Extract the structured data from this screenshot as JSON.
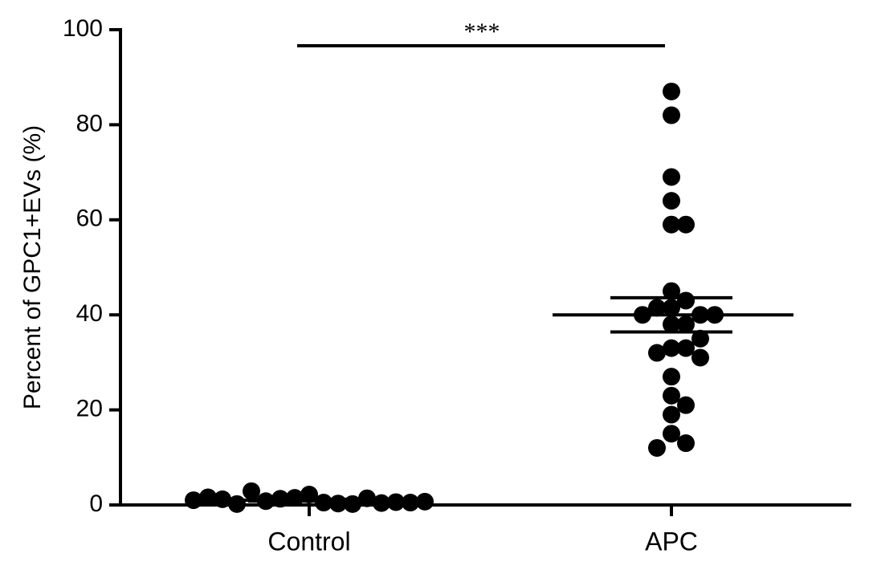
{
  "chart_data": {
    "type": "strip",
    "y_label": "Percent of GPC1+EVs (%)",
    "categories": [
      "Control",
      "APC"
    ],
    "series": [
      {
        "color": "#000000",
        "values": [
          2.2,
          0.5,
          1.5,
          0.3,
          1.3,
          0.2,
          0.8,
          1.4,
          2.9,
          0.4,
          0.2,
          0.6,
          1.2,
          0.5,
          1.6,
          0.7,
          1.0
        ],
        "mean": 1.0,
        "sem": 0.2
      },
      {
        "color": "#000000",
        "values": [
          87,
          82,
          69,
          64,
          59,
          59,
          45,
          43,
          41.5,
          41.5,
          40,
          40,
          40,
          38,
          38,
          33,
          33,
          32,
          35,
          31,
          27,
          23,
          21,
          19,
          15,
          13,
          12
        ],
        "mean": 40,
        "sem": 3.6
      }
    ],
    "significance": "***",
    "ylim": [
      0,
      100
    ],
    "yticks": [
      0,
      20,
      40,
      60,
      80,
      100
    ]
  }
}
